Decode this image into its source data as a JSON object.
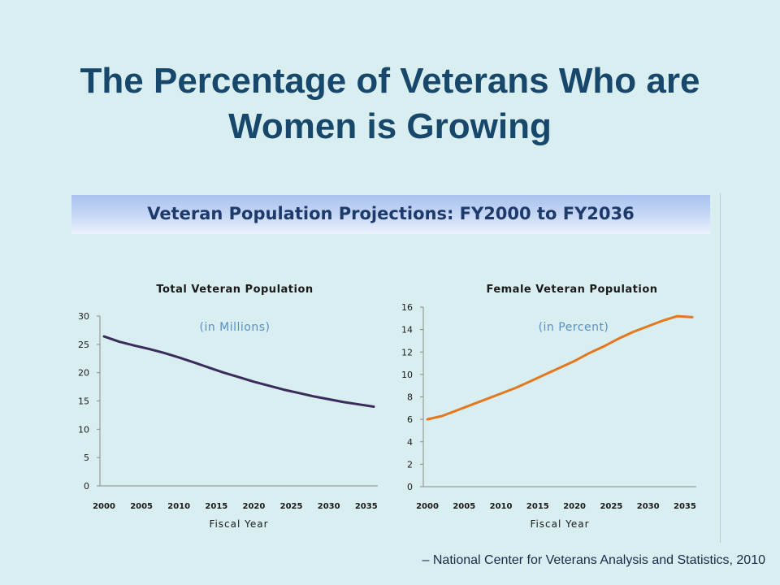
{
  "slide": {
    "title_line1": "The Percentage of Veterans Who are",
    "title_line2": "Women is Growing",
    "banner": "Veteran Population Projections: FY2000 to FY2036",
    "source": "– National Center for Veterans Analysis and Statistics, 2010"
  },
  "chart_data": [
    {
      "type": "line",
      "title": "Total Veteran Population",
      "subtitle": "(in Millions)",
      "xlabel": "Fiscal Year",
      "ylabel": "",
      "xlim": [
        2000,
        2036
      ],
      "ylim": [
        0,
        30
      ],
      "x_ticks": [
        2000,
        2005,
        2010,
        2015,
        2020,
        2025,
        2030,
        2035
      ],
      "y_ticks": [
        0,
        5,
        10,
        15,
        20,
        25,
        30
      ],
      "grid": false,
      "line_color": "#3b2a5c",
      "subtitle_color": "#5a8fc4",
      "series": [
        {
          "x": [
            2000,
            2002,
            2004,
            2006,
            2008,
            2010,
            2012,
            2014,
            2016,
            2018,
            2020,
            2022,
            2024,
            2026,
            2028,
            2030,
            2032,
            2034,
            2036
          ],
          "values": [
            26.4,
            25.5,
            24.8,
            24.2,
            23.5,
            22.7,
            21.8,
            20.9,
            20.0,
            19.2,
            18.4,
            17.7,
            17.0,
            16.4,
            15.8,
            15.3,
            14.8,
            14.4,
            14.0
          ]
        }
      ]
    },
    {
      "type": "line",
      "title": "Female Veteran Population",
      "subtitle": "(in Percent)",
      "xlabel": "Fiscal Year",
      "ylabel": "",
      "xlim": [
        2000,
        2036
      ],
      "ylim": [
        0,
        16
      ],
      "x_ticks": [
        2000,
        2005,
        2010,
        2015,
        2020,
        2025,
        2030,
        2035
      ],
      "y_ticks": [
        0,
        2,
        4,
        6,
        8,
        10,
        12,
        14,
        16
      ],
      "grid": false,
      "line_color": "#e2781f",
      "subtitle_color": "#5a8fc4",
      "series": [
        {
          "x": [
            2000,
            2002,
            2004,
            2006,
            2008,
            2010,
            2012,
            2014,
            2016,
            2018,
            2020,
            2022,
            2024,
            2026,
            2028,
            2030,
            2032,
            2034,
            2036
          ],
          "values": [
            6.0,
            6.3,
            6.8,
            7.3,
            7.8,
            8.3,
            8.8,
            9.4,
            10.0,
            10.6,
            11.2,
            11.9,
            12.5,
            13.2,
            13.8,
            14.3,
            14.8,
            15.2,
            15.1
          ]
        }
      ]
    }
  ]
}
